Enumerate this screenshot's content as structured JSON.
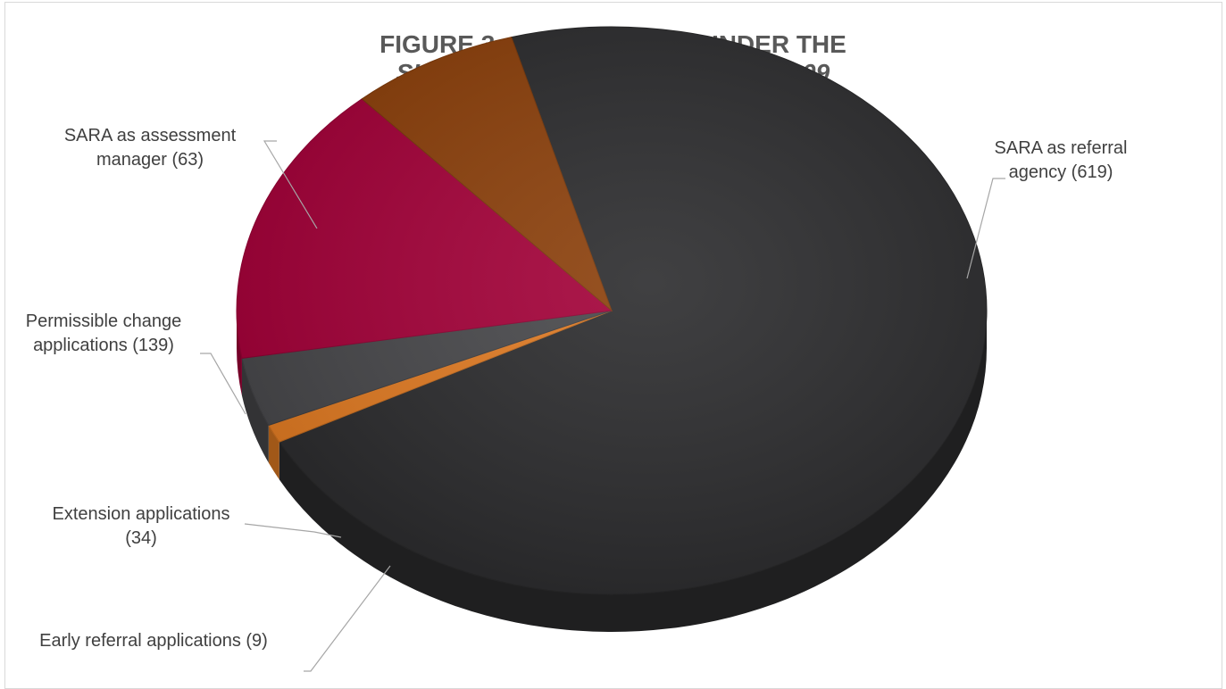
{
  "chart_data": {
    "type": "pie",
    "title": "FIGURE 3: APPLICATIONS UNDER THE",
    "subtitle": "SUSTAINABLE PLANNING ACT 2009",
    "slices": [
      {
        "label_lines": [
          "SARA as referral",
          "agency (619)"
        ],
        "value": 619,
        "color": "#2b2b2d"
      },
      {
        "label_lines": [
          "Early referral applications (9)"
        ],
        "value": 9,
        "color": "#e07a22"
      },
      {
        "label_lines": [
          "Extension applications",
          "(34)"
        ],
        "value": 34,
        "color": "#47474a"
      },
      {
        "label_lines": [
          "Permissible change",
          "applications (139)"
        ],
        "value": 139,
        "color": "#a30038"
      },
      {
        "label_lines": [
          "SARA as assessment",
          "manager (63)"
        ],
        "value": 63,
        "color": "#8b3f0a"
      }
    ],
    "legend": "none"
  }
}
